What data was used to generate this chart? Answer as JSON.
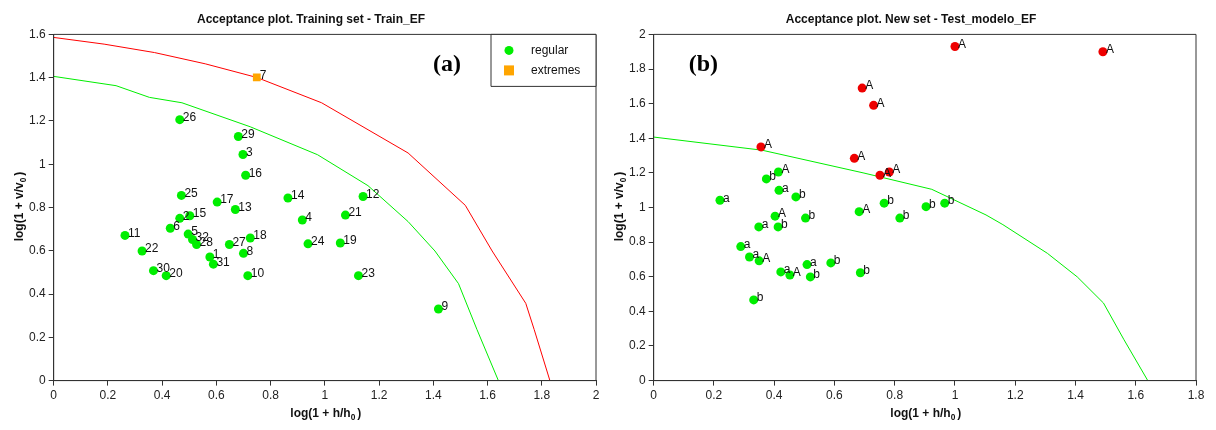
{
  "chart_data": [
    {
      "type": "scatter",
      "title": "Acceptance plot. Training set - Train_EF",
      "xlabel": "log(1 + h/h$_{0}$)",
      "ylabel": "log(1 + v/v$_{0}$)",
      "xlim": [
        0,
        2
      ],
      "xticks": [
        0,
        0.2,
        0.4,
        0.6,
        0.8,
        1,
        1.2,
        1.4,
        1.6,
        1.8,
        2
      ],
      "ylim": [
        0,
        1.6
      ],
      "yticks": [
        0,
        0.2,
        0.4,
        0.6,
        0.8,
        1,
        1.2,
        1.4,
        1.6
      ],
      "grid": false,
      "legend": "top right",
      "annotations": [
        "(a)",
        {
          "text": "1",
          "x": 0.576,
          "y": 0.571
        },
        {
          "text": "2",
          "x": 0.465,
          "y": 0.75
        },
        {
          "text": "3",
          "x": 0.698,
          "y": 1.045
        },
        {
          "text": "4",
          "x": 0.917,
          "y": 0.742
        },
        {
          "text": "5",
          "x": 0.496,
          "y": 0.677
        },
        {
          "text": "6",
          "x": 0.43,
          "y": 0.704
        },
        {
          "text": "8",
          "x": 0.7,
          "y": 0.588
        },
        {
          "text": "9",
          "x": 1.419,
          "y": 0.331
        },
        {
          "text": "10",
          "x": 0.716,
          "y": 0.485
        },
        {
          "text": "11",
          "x": 0.263,
          "y": 0.671
        },
        {
          "text": "12",
          "x": 1.141,
          "y": 0.851
        },
        {
          "text": "13",
          "x": 0.67,
          "y": 0.791
        },
        {
          "text": "14",
          "x": 0.864,
          "y": 0.844
        },
        {
          "text": "15",
          "x": 0.502,
          "y": 0.762
        },
        {
          "text": "16",
          "x": 0.708,
          "y": 0.949
        },
        {
          "text": "17",
          "x": 0.603,
          "y": 0.825
        },
        {
          "text": "18",
          "x": 0.725,
          "y": 0.659
        },
        {
          "text": "19",
          "x": 1.057,
          "y": 0.636
        },
        {
          "text": "20",
          "x": 0.415,
          "y": 0.485
        },
        {
          "text": "21",
          "x": 1.076,
          "y": 0.765
        },
        {
          "text": "22",
          "x": 0.326,
          "y": 0.599
        },
        {
          "text": "23",
          "x": 1.124,
          "y": 0.485
        },
        {
          "text": "24",
          "x": 0.938,
          "y": 0.632
        },
        {
          "text": "25",
          "x": 0.471,
          "y": 0.856
        },
        {
          "text": "26",
          "x": 0.465,
          "y": 1.206
        },
        {
          "text": "27",
          "x": 0.648,
          "y": 0.629
        },
        {
          "text": "28",
          "x": 0.527,
          "y": 0.629
        },
        {
          "text": "29",
          "x": 0.681,
          "y": 1.128
        },
        {
          "text": "30",
          "x": 0.368,
          "y": 0.508
        },
        {
          "text": "31",
          "x": 0.589,
          "y": 0.538
        },
        {
          "text": "32",
          "x": 0.512,
          "y": 0.652
        },
        {
          "text": "7",
          "x": 0.749,
          "y": 1.401
        }
      ],
      "series": [
        {
          "name": "regular",
          "type": "scatter",
          "color": "#00ee00",
          "marker": "circle",
          "x": [
            0.576,
            0.465,
            0.698,
            0.917,
            0.496,
            0.43,
            0.7,
            1.419,
            0.716,
            0.263,
            1.141,
            0.67,
            0.864,
            0.502,
            0.708,
            0.603,
            0.725,
            1.057,
            0.415,
            1.076,
            0.326,
            1.124,
            0.938,
            0.471,
            0.465,
            0.648,
            0.527,
            0.681,
            0.368,
            0.589,
            0.512
          ],
          "values": [
            0.571,
            0.75,
            1.045,
            0.742,
            0.677,
            0.704,
            0.588,
            0.331,
            0.485,
            0.671,
            0.851,
            0.791,
            0.844,
            0.762,
            0.949,
            0.825,
            0.659,
            0.636,
            0.485,
            0.765,
            0.599,
            0.485,
            0.632,
            0.856,
            1.206,
            0.629,
            0.629,
            1.128,
            0.508,
            0.538,
            0.652
          ]
        },
        {
          "name": "extremes",
          "type": "scatter",
          "color": "#ffa500",
          "marker": "square",
          "x": [
            0.749
          ],
          "values": [
            1.401
          ]
        },
        {
          "type": "line",
          "color": "#00ee00",
          "marker": "none",
          "x": [
            0,
            0.23,
            0.353,
            0.473,
            0.725,
            0.973,
            1.159,
            1.307,
            1.406,
            1.493,
            1.561,
            1.64
          ],
          "values": [
            1.406,
            1.363,
            1.309,
            1.284,
            1.173,
            1.044,
            0.901,
            0.735,
            0.599,
            0.448,
            0.236,
            0
          ]
        },
        {
          "type": "line",
          "color": "#ff0000",
          "marker": "none",
          "x": [
            0,
            0.186,
            0.372,
            0.559,
            0.749,
            0.988,
            1.307,
            1.518,
            1.617,
            1.741,
            1.772,
            1.83
          ],
          "values": [
            1.586,
            1.555,
            1.516,
            1.464,
            1.401,
            1.284,
            1.052,
            0.81,
            0.599,
            0.357,
            0.236,
            0
          ]
        }
      ]
    },
    {
      "type": "scatter",
      "title": "Acceptance plot. New set - Test_modelo_EF",
      "xlabel": "log(1 + h/h$_{0}$)",
      "ylabel": "log(1 + v/v$_{0}$)",
      "xlim": [
        0,
        1.8
      ],
      "xticks": [
        0,
        0.2,
        0.4,
        0.6,
        0.8,
        1,
        1.2,
        1.4,
        1.6,
        1.8
      ],
      "ylim": [
        0,
        2
      ],
      "yticks": [
        0,
        0.2,
        0.4,
        0.6,
        0.8,
        1,
        1.2,
        1.4,
        1.6,
        1.8,
        2
      ],
      "grid": false,
      "legend": false,
      "annotations": [
        "(b)",
        {
          "text": "A",
          "x": 1.0,
          "y": 1.93
        },
        {
          "text": "A",
          "x": 1.491,
          "y": 1.9
        },
        {
          "text": "A",
          "x": 0.692,
          "y": 1.69
        },
        {
          "text": "A",
          "x": 0.73,
          "y": 1.59
        },
        {
          "text": "A",
          "x": 0.356,
          "y": 1.35
        },
        {
          "text": "A",
          "x": 0.666,
          "y": 1.284
        },
        {
          "text": "A",
          "x": 0.751,
          "y": 1.186
        },
        {
          "text": "A",
          "x": 0.782,
          "y": 1.205
        },
        {
          "text": "A",
          "x": 0.414,
          "y": 1.205
        },
        {
          "text": "b",
          "x": 0.374,
          "y": 1.165
        },
        {
          "text": "a",
          "x": 0.416,
          "y": 1.099
        },
        {
          "text": "b",
          "x": 0.472,
          "y": 1.061
        },
        {
          "text": "a",
          "x": 0.22,
          "y": 1.042
        },
        {
          "text": "A",
          "x": 0.403,
          "y": 0.95
        },
        {
          "text": "a",
          "x": 0.349,
          "y": 0.888
        },
        {
          "text": "b",
          "x": 0.413,
          "y": 0.888
        },
        {
          "text": "b",
          "x": 0.504,
          "y": 0.939
        },
        {
          "text": "A",
          "x": 0.682,
          "y": 0.976
        },
        {
          "text": "b",
          "x": 0.765,
          "y": 1.025
        },
        {
          "text": "b",
          "x": 0.817,
          "y": 0.939
        },
        {
          "text": "b",
          "x": 0.904,
          "y": 1.005
        },
        {
          "text": "b",
          "x": 0.966,
          "y": 1.025
        },
        {
          "text": "a",
          "x": 0.289,
          "y": 0.774
        },
        {
          "text": "a",
          "x": 0.318,
          "y": 0.714
        },
        {
          "text": "A",
          "x": 0.35,
          "y": 0.692
        },
        {
          "text": "a",
          "x": 0.422,
          "y": 0.628
        },
        {
          "text": "A",
          "x": 0.452,
          "y": 0.61
        },
        {
          "text": "a",
          "x": 0.509,
          "y": 0.67
        },
        {
          "text": "b",
          "x": 0.588,
          "y": 0.68
        },
        {
          "text": "b",
          "x": 0.52,
          "y": 0.599
        },
        {
          "text": "b",
          "x": 0.686,
          "y": 0.623
        },
        {
          "text": "b",
          "x": 0.332,
          "y": 0.466
        }
      ],
      "series": [
        {
          "type": "scatter",
          "color": "#ee0000",
          "marker": "circle",
          "x": [
            1.0,
            1.491,
            0.692,
            0.73,
            0.356,
            0.666,
            0.751,
            0.782
          ],
          "values": [
            1.93,
            1.9,
            1.69,
            1.59,
            1.35,
            1.284,
            1.186,
            1.205
          ]
        },
        {
          "type": "scatter",
          "color": "#00ee00",
          "marker": "circle",
          "x": [
            0.414,
            0.374,
            0.416,
            0.472,
            0.22,
            0.403,
            0.349,
            0.413,
            0.504,
            0.682,
            0.765,
            0.817,
            0.904,
            0.966,
            0.289,
            0.318,
            0.35,
            0.422,
            0.452,
            0.509,
            0.588,
            0.52,
            0.686,
            0.332
          ],
          "values": [
            1.205,
            1.165,
            1.099,
            1.061,
            1.042,
            0.95,
            0.888,
            0.888,
            0.939,
            0.976,
            1.025,
            0.939,
            1.005,
            1.025,
            0.774,
            0.714,
            0.692,
            0.628,
            0.61,
            0.67,
            0.68,
            0.599,
            0.623,
            0.466
          ]
        },
        {
          "type": "line",
          "color": "#00ee00",
          "marker": "none",
          "x": [
            0,
            0.36,
            0.698,
            0.923,
            1.103,
            1.159,
            1.307,
            1.406,
            1.493,
            1.561,
            1.64
          ],
          "values": [
            1.407,
            1.331,
            1.199,
            1.105,
            0.957,
            0.901,
            0.735,
            0.599,
            0.448,
            0.236,
            0
          ]
        }
      ]
    }
  ]
}
